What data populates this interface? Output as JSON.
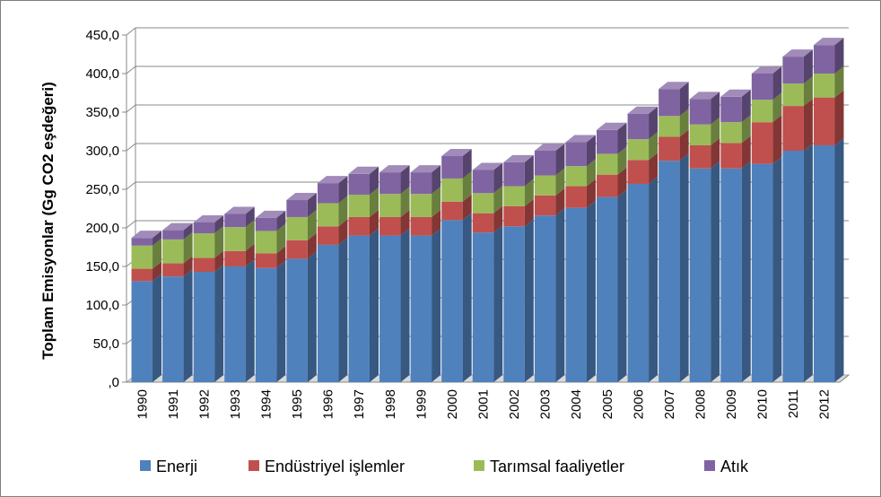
{
  "chart_data": {
    "type": "bar",
    "stacked": true,
    "three_d": true,
    "title": "",
    "xlabel": "",
    "ylabel": "Toplam Emisyonlar (Gg CO2 eşdeğeri)",
    "ylim": [
      0,
      450
    ],
    "y_ticks": [
      ",0",
      "50,0",
      "100,0",
      "150,0",
      "200,0",
      "250,0",
      "300,0",
      "350,0",
      "400,0",
      "450,0"
    ],
    "grid": true,
    "legend_position": "bottom",
    "categories": [
      "1990",
      "1991",
      "1992",
      "1993",
      "1994",
      "1995",
      "1996",
      "1997",
      "1998",
      "1999",
      "2000",
      "2001",
      "2002",
      "2003",
      "2004",
      "2005",
      "2006",
      "2007",
      "2008",
      "2009",
      "2010",
      "2011",
      "2012"
    ],
    "series": [
      {
        "name": "Enerji",
        "color": "#4f81bd",
        "values": [
          131,
          137,
          143,
          150,
          148,
          160,
          178,
          190,
          190,
          190,
          210,
          194,
          202,
          216,
          226,
          240,
          257,
          287,
          277,
          277,
          283,
          300,
          307
        ]
      },
      {
        "name": "Endüstriyel işlemler",
        "color": "#c0504d",
        "values": [
          16,
          17,
          18,
          20,
          19,
          24,
          24,
          24,
          24,
          24,
          24,
          25,
          26,
          26,
          28,
          29,
          31,
          31,
          30,
          33,
          54,
          58,
          62
        ]
      },
      {
        "name": "Tarımsal faaliyetler",
        "color": "#9bbb59",
        "values": [
          30,
          31,
          32,
          31,
          29,
          30,
          30,
          29,
          30,
          30,
          30,
          26,
          26,
          26,
          26,
          27,
          27,
          27,
          27,
          27,
          29,
          29,
          31
        ]
      },
      {
        "name": "Atık",
        "color": "#8064a2",
        "values": [
          10,
          12,
          14,
          17,
          17,
          22,
          26,
          27,
          28,
          28,
          29,
          30,
          31,
          32,
          31,
          31,
          33,
          35,
          33,
          33,
          34,
          35,
          37
        ]
      }
    ]
  }
}
